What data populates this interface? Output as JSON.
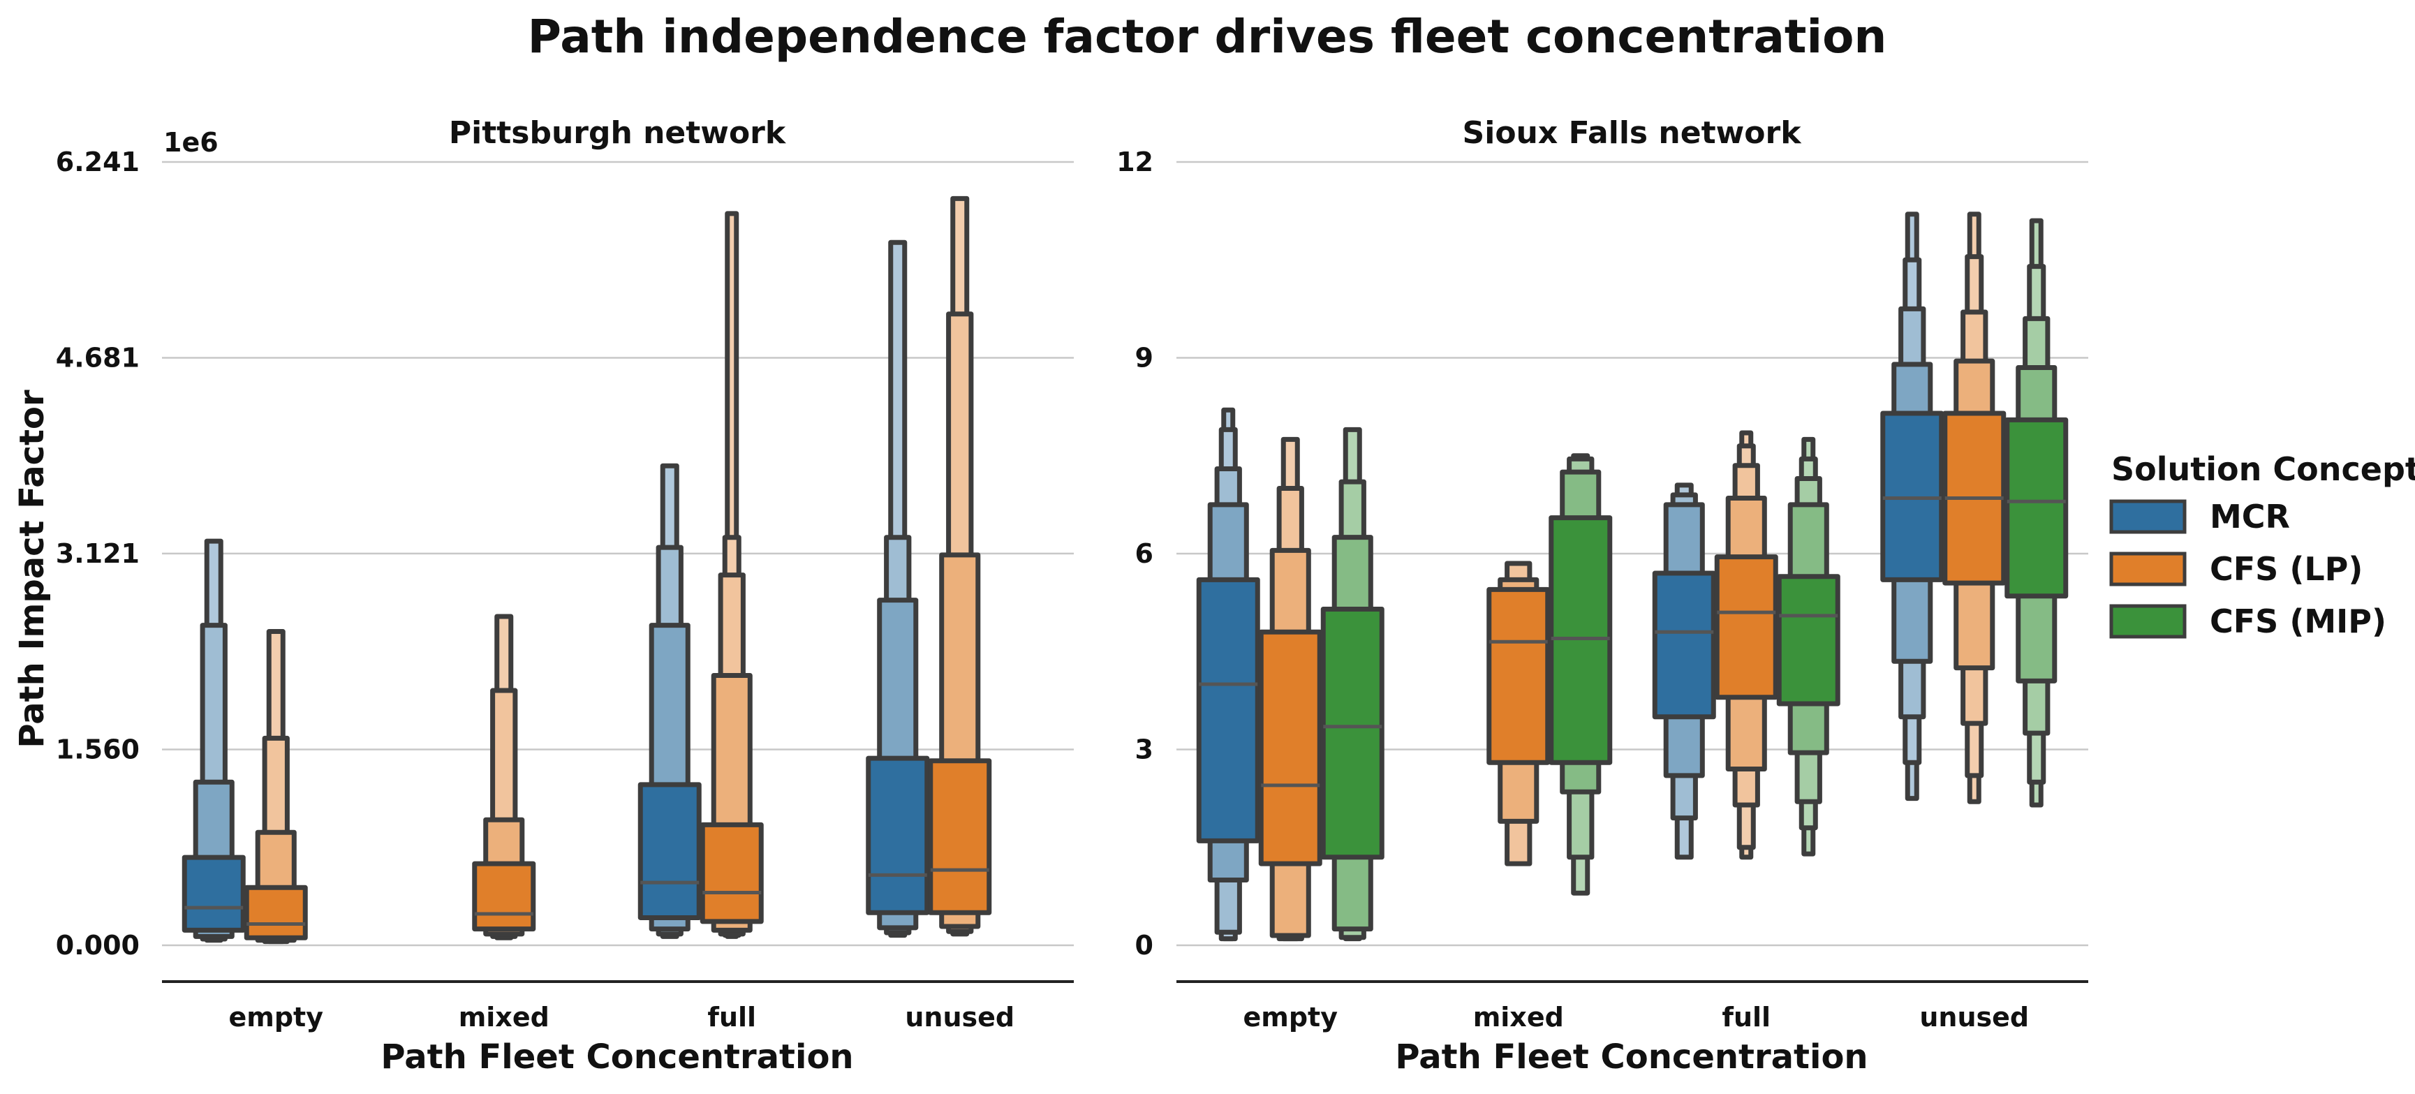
{
  "figure": {
    "title": "Path independence factor drives fleet concentration"
  },
  "colors": {
    "MCR": "#2f6f9f",
    "CFS (LP)": "#e07f2a",
    "CFS (MIP)": "#3b923b",
    "edge": "#3d3d3d",
    "grid": "#c8c8c8"
  },
  "legend": {
    "title": "Solution Concept",
    "placement": "right",
    "items": [
      "MCR",
      "CFS (LP)",
      "CFS (MIP)"
    ]
  },
  "chart_data": [
    {
      "type": "boxenplot",
      "title": "Pittsburgh network",
      "xlabel": "Path Fleet Concentration",
      "ylabel": "Path Impact Factor",
      "y_offset_text": "1e6",
      "ylim": [
        -0.3,
        6.241
      ],
      "yticks": [
        0,
        1.56,
        3.121,
        4.681,
        6.241
      ],
      "ytick_labels": [
        "0.000",
        "1.560",
        "3.121",
        "4.681",
        "6.241"
      ],
      "grid": true,
      "categories": [
        "empty",
        "mixed",
        "full",
        "unused"
      ],
      "hue_order": [
        "MCR",
        "CFS (LP)",
        "CFS (MIP)"
      ],
      "groups": [
        {
          "category": "empty",
          "hue": "MCR",
          "median": 0.3,
          "levels": [
            [
              0.12,
              0.7
            ],
            [
              0.07,
              1.3
            ],
            [
              0.05,
              2.55
            ],
            [
              0.04,
              3.22
            ]
          ]
        },
        {
          "category": "empty",
          "hue": "CFS (LP)",
          "median": 0.17,
          "levels": [
            [
              0.06,
              0.46
            ],
            [
              0.04,
              0.9
            ],
            [
              0.03,
              1.65
            ],
            [
              0.03,
              2.5
            ]
          ]
        },
        {
          "category": "mixed",
          "hue": "CFS (LP)",
          "median": 0.25,
          "levels": [
            [
              0.13,
              0.65
            ],
            [
              0.09,
              1.0
            ],
            [
              0.07,
              2.03
            ],
            [
              0.06,
              2.62
            ]
          ]
        },
        {
          "category": "full",
          "hue": "MCR",
          "median": 0.5,
          "levels": [
            [
              0.22,
              1.28
            ],
            [
              0.13,
              2.55
            ],
            [
              0.09,
              3.17
            ],
            [
              0.07,
              3.82
            ]
          ]
        },
        {
          "category": "full",
          "hue": "CFS (LP)",
          "median": 0.42,
          "levels": [
            [
              0.19,
              0.96
            ],
            [
              0.12,
              2.15
            ],
            [
              0.09,
              2.95
            ],
            [
              0.08,
              3.25
            ],
            [
              0.07,
              5.83
            ]
          ]
        },
        {
          "category": "unused",
          "hue": "MCR",
          "median": 0.56,
          "levels": [
            [
              0.26,
              1.49
            ],
            [
              0.14,
              2.75
            ],
            [
              0.1,
              3.25
            ],
            [
              0.08,
              5.6
            ]
          ]
        },
        {
          "category": "unused",
          "hue": "CFS (LP)",
          "median": 0.6,
          "levels": [
            [
              0.26,
              1.47
            ],
            [
              0.15,
              3.11
            ],
            [
              0.11,
              5.03
            ],
            [
              0.09,
              5.95
            ]
          ]
        }
      ]
    },
    {
      "type": "boxenplot",
      "title": "Sioux Falls network",
      "xlabel": "Path Fleet Concentration",
      "ylabel": "",
      "ylim": [
        -0.5,
        12
      ],
      "yticks": [
        0,
        3,
        6,
        9,
        12
      ],
      "ytick_labels": [
        "0",
        "3",
        "6",
        "9",
        "12"
      ],
      "grid": true,
      "categories": [
        "empty",
        "mixed",
        "full",
        "unused"
      ],
      "hue_order": [
        "MCR",
        "CFS (LP)",
        "CFS (MIP)"
      ],
      "groups": [
        {
          "category": "empty",
          "hue": "MCR",
          "median": 4.0,
          "levels": [
            [
              1.6,
              5.6
            ],
            [
              1.0,
              6.75
            ],
            [
              0.2,
              7.3
            ],
            [
              0.1,
              7.9
            ],
            [
              0.1,
              8.2
            ]
          ]
        },
        {
          "category": "empty",
          "hue": "CFS (LP)",
          "median": 2.45,
          "levels": [
            [
              1.25,
              4.8
            ],
            [
              0.15,
              6.05
            ],
            [
              0.1,
              7.0
            ],
            [
              0.1,
              7.75
            ]
          ]
        },
        {
          "category": "empty",
          "hue": "CFS (MIP)",
          "median": 3.35,
          "levels": [
            [
              1.35,
              5.15
            ],
            [
              0.25,
              6.25
            ],
            [
              0.12,
              7.1
            ],
            [
              0.1,
              7.9
            ]
          ]
        },
        {
          "category": "mixed",
          "hue": "CFS (LP)",
          "median": 4.65,
          "levels": [
            [
              2.8,
              5.45
            ],
            [
              1.9,
              5.6
            ],
            [
              1.25,
              5.85
            ]
          ]
        },
        {
          "category": "mixed",
          "hue": "CFS (MIP)",
          "median": 4.7,
          "levels": [
            [
              2.8,
              6.55
            ],
            [
              2.35,
              7.25
            ],
            [
              1.35,
              7.45
            ],
            [
              0.8,
              7.5
            ]
          ]
        },
        {
          "category": "full",
          "hue": "MCR",
          "median": 4.8,
          "levels": [
            [
              3.5,
              5.7
            ],
            [
              2.6,
              6.75
            ],
            [
              1.95,
              6.9
            ],
            [
              1.35,
              7.05
            ]
          ]
        },
        {
          "category": "full",
          "hue": "CFS (LP)",
          "median": 5.1,
          "levels": [
            [
              3.8,
              5.95
            ],
            [
              2.7,
              6.85
            ],
            [
              2.15,
              7.35
            ],
            [
              1.5,
              7.65
            ],
            [
              1.35,
              7.85
            ]
          ]
        },
        {
          "category": "full",
          "hue": "CFS (MIP)",
          "median": 5.05,
          "levels": [
            [
              3.7,
              5.65
            ],
            [
              2.95,
              6.75
            ],
            [
              2.2,
              7.15
            ],
            [
              1.8,
              7.45
            ],
            [
              1.4,
              7.75
            ]
          ]
        },
        {
          "category": "unused",
          "hue": "MCR",
          "median": 6.85,
          "levels": [
            [
              5.6,
              8.15
            ],
            [
              4.35,
              8.9
            ],
            [
              3.5,
              9.75
            ],
            [
              2.8,
              10.5
            ],
            [
              2.25,
              11.2
            ]
          ]
        },
        {
          "category": "unused",
          "hue": "CFS (LP)",
          "median": 6.85,
          "levels": [
            [
              5.55,
              8.15
            ],
            [
              4.25,
              8.95
            ],
            [
              3.4,
              9.7
            ],
            [
              2.6,
              10.55
            ],
            [
              2.2,
              11.2
            ]
          ]
        },
        {
          "category": "unused",
          "hue": "CFS (MIP)",
          "median": 6.8,
          "levels": [
            [
              5.35,
              8.05
            ],
            [
              4.05,
              8.85
            ],
            [
              3.25,
              9.6
            ],
            [
              2.5,
              10.4
            ],
            [
              2.15,
              11.1
            ]
          ]
        }
      ]
    }
  ]
}
